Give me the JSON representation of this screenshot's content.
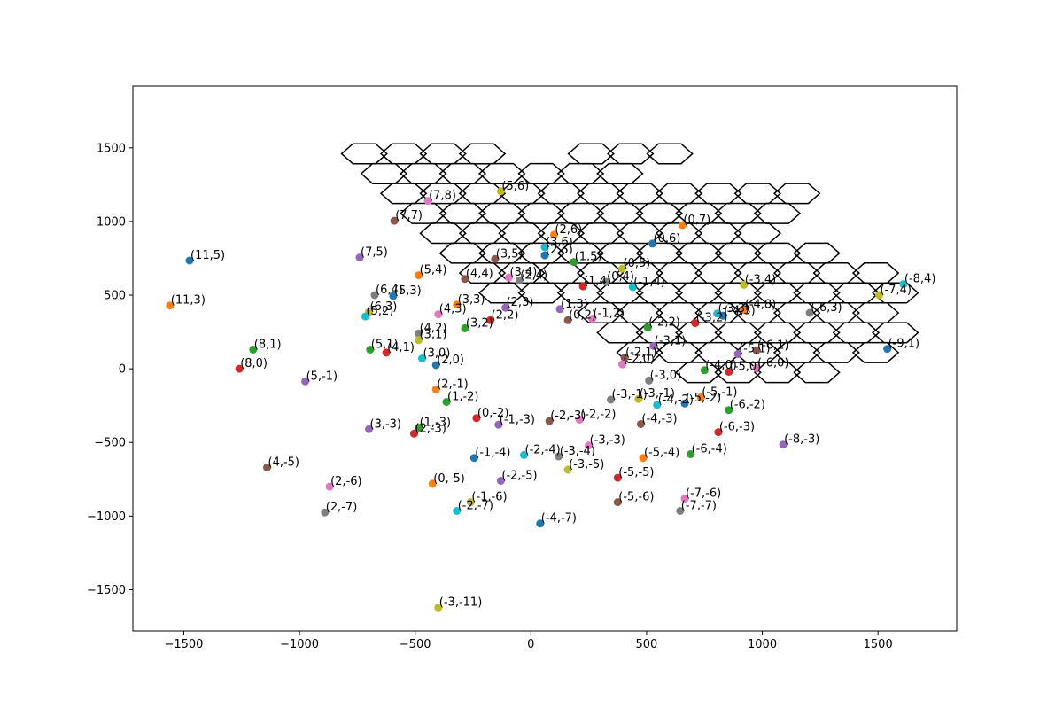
{
  "chart_data": {
    "type": "scatter",
    "title": "",
    "xlabel": "",
    "ylabel": "",
    "xlim": [
      -1720,
      1840
    ],
    "ylim": [
      -1780,
      1920
    ],
    "xticks": [
      -1500,
      -1000,
      -500,
      0,
      500,
      1000,
      1500
    ],
    "yticks": [
      -1500,
      -1000,
      -500,
      0,
      500,
      1000,
      1500
    ],
    "grid": false,
    "legend": "none",
    "colors": [
      "#1f77b4",
      "#ff7f0e",
      "#2ca02c",
      "#d62728",
      "#9467bd",
      "#8c564b",
      "#e377c2",
      "#7f7f7f",
      "#bcbd22",
      "#17becf"
    ],
    "points": [
      {
        "label": "(11,5)",
        "x": -1475,
        "y": 735
      },
      {
        "label": "(11,3)",
        "x": -1560,
        "y": 430
      },
      {
        "label": "(8,1)",
        "x": -1200,
        "y": 130
      },
      {
        "label": "(8,0)",
        "x": -1260,
        "y": 0
      },
      {
        "label": "(7,5)",
        "x": -740,
        "y": 755
      },
      {
        "label": "(7,7)",
        "x": -590,
        "y": 1005
      },
      {
        "label": "(7,8)",
        "x": -445,
        "y": 1140
      },
      {
        "label": "(6,4)",
        "x": -675,
        "y": 500
      },
      {
        "label": "(6,3)",
        "x": -700,
        "y": 385
      },
      {
        "label": "(5,2)",
        "x": -715,
        "y": 355
      },
      {
        "label": "(5,3)",
        "x": -595,
        "y": 495
      },
      {
        "label": "(5,4)",
        "x": -485,
        "y": 635
      },
      {
        "label": "(5,1)",
        "x": -695,
        "y": 130
      },
      {
        "label": "(4,1)",
        "x": -625,
        "y": 110
      },
      {
        "label": "(5,-1)",
        "x": -975,
        "y": -85
      },
      {
        "label": "(4,4)",
        "x": -285,
        "y": 610
      },
      {
        "label": "(4,3)",
        "x": -400,
        "y": 370
      },
      {
        "label": "(4,2)",
        "x": -485,
        "y": 240
      },
      {
        "label": "(3,1)",
        "x": -485,
        "y": 195
      },
      {
        "label": "(3,0)",
        "x": -470,
        "y": 70
      },
      {
        "label": "(2,0)",
        "x": -410,
        "y": 25
      },
      {
        "label": "(3,3)",
        "x": -320,
        "y": 435
      },
      {
        "label": "(3,2)",
        "x": -285,
        "y": 275
      },
      {
        "label": "(2,2)",
        "x": -175,
        "y": 330
      },
      {
        "label": "(2,3)",
        "x": -110,
        "y": 415
      },
      {
        "label": "(3,5)",
        "x": -155,
        "y": 745
      },
      {
        "label": "(3,4)",
        "x": -95,
        "y": 620
      },
      {
        "label": "(2,4)",
        "x": -50,
        "y": 600
      },
      {
        "label": "(5,6)",
        "x": -130,
        "y": 1205
      },
      {
        "label": "(3,6)",
        "x": 60,
        "y": 825
      },
      {
        "label": "(2,5)",
        "x": 60,
        "y": 770
      },
      {
        "label": "(2,6)",
        "x": 100,
        "y": 910
      },
      {
        "label": "(1,5)",
        "x": 185,
        "y": 725
      },
      {
        "label": "(1,4)",
        "x": 225,
        "y": 560
      },
      {
        "label": "(1,3)",
        "x": 125,
        "y": 405
      },
      {
        "label": "(0,2)",
        "x": 160,
        "y": 330
      },
      {
        "label": "(-1,2)",
        "x": 265,
        "y": 340
      },
      {
        "label": "(0,4)",
        "x": 325,
        "y": 590
      },
      {
        "label": "(0,5)",
        "x": 395,
        "y": 680
      },
      {
        "label": "(-1,4)",
        "x": 440,
        "y": 555
      },
      {
        "label": "(0,6)",
        "x": 525,
        "y": 850
      },
      {
        "label": "(0,7)",
        "x": 655,
        "y": 975
      },
      {
        "label": "(-2,2)",
        "x": 505,
        "y": 280
      },
      {
        "label": "(-3,2)",
        "x": 710,
        "y": 310
      },
      {
        "label": "(-3,1)",
        "x": 530,
        "y": 155
      },
      {
        "label": "(-2,1)",
        "x": 405,
        "y": 75
      },
      {
        "label": "(-2,0)",
        "x": 395,
        "y": 30
      },
      {
        "label": "(-3,0)",
        "x": 510,
        "y": -80
      },
      {
        "label": "(-3,4)",
        "x": 920,
        "y": 570
      },
      {
        "label": "(-3,3)",
        "x": 805,
        "y": 375
      },
      {
        "label": "(-4,3)",
        "x": 830,
        "y": 360
      },
      {
        "label": "(-4,8)",
        "x": 920,
        "y": 400
      },
      {
        "label": "(-4,0)",
        "x": 750,
        "y": -10
      },
      {
        "label": "(-5,0)",
        "x": 855,
        "y": -20
      },
      {
        "label": "(-5,1)",
        "x": 895,
        "y": 100
      },
      {
        "label": "(-6,1)",
        "x": 975,
        "y": 125
      },
      {
        "label": "(-6,0)",
        "x": 975,
        "y": 5
      },
      {
        "label": "(-6,3)",
        "x": 1205,
        "y": 380
      },
      {
        "label": "(-7,4)",
        "x": 1505,
        "y": 500
      },
      {
        "label": "(-8,4)",
        "x": 1610,
        "y": 575
      },
      {
        "label": "(-9,1)",
        "x": 1540,
        "y": 135
      },
      {
        "label": "(2,-1)",
        "x": -410,
        "y": -140
      },
      {
        "label": "(1,-2)",
        "x": -365,
        "y": -225
      },
      {
        "label": "(0,-2)",
        "x": -235,
        "y": -335
      },
      {
        "label": "(-1,-3)",
        "x": -140,
        "y": -380
      },
      {
        "label": "(-2,-3)",
        "x": 80,
        "y": -355
      },
      {
        "label": "(-2,-2)",
        "x": 210,
        "y": -345
      },
      {
        "label": "(-3,-1)",
        "x": 345,
        "y": -210
      },
      {
        "label": "(-3,-1)",
        "x": 465,
        "y": -205
      },
      {
        "label": "(-4,-2)",
        "x": 545,
        "y": -245
      },
      {
        "label": "(-5,-2)",
        "x": 665,
        "y": -235
      },
      {
        "label": "(-5,-1)",
        "x": 735,
        "y": -195
      },
      {
        "label": "(-6,-2)",
        "x": 855,
        "y": -280
      },
      {
        "label": "(-6,-3)",
        "x": 810,
        "y": -430
      },
      {
        "label": "(-8,-3)",
        "x": 1090,
        "y": -515
      },
      {
        "label": "(-4,-3)",
        "x": 475,
        "y": -375
      },
      {
        "label": "(-3,-3)",
        "x": 250,
        "y": -520
      },
      {
        "label": "(-3,-4)",
        "x": 120,
        "y": -595
      },
      {
        "label": "(-3,-5)",
        "x": 160,
        "y": -685
      },
      {
        "label": "(-2,-4)",
        "x": -30,
        "y": -585
      },
      {
        "label": "(-1,-4)",
        "x": -245,
        "y": -605
      },
      {
        "label": "(-5,-4)",
        "x": 485,
        "y": -605
      },
      {
        "label": "(-6,-4)",
        "x": 690,
        "y": -580
      },
      {
        "label": "(-5,-5)",
        "x": 375,
        "y": -740
      },
      {
        "label": "(-2,-5)",
        "x": -130,
        "y": -760
      },
      {
        "label": "(-5,-6)",
        "x": 375,
        "y": -905
      },
      {
        "label": "(-7,-6)",
        "x": 665,
        "y": -880
      },
      {
        "label": "(-7,-7)",
        "x": 645,
        "y": -965
      },
      {
        "label": "(-1,-6)",
        "x": -260,
        "y": -905
      },
      {
        "label": "(-2,-7)",
        "x": -320,
        "y": -965
      },
      {
        "label": "(-4,-7)",
        "x": 40,
        "y": -1050
      },
      {
        "label": "(0,-5)",
        "x": -425,
        "y": -780
      },
      {
        "label": "(1,-3)",
        "x": -485,
        "y": -400
      },
      {
        "label": "(2,-3)",
        "x": -505,
        "y": -440
      },
      {
        "label": "(3,-3)",
        "x": -700,
        "y": -410
      },
      {
        "label": "(4,-5)",
        "x": -1140,
        "y": -670
      },
      {
        "label": "(2,-6)",
        "x": -870,
        "y": -800
      },
      {
        "label": "(2,-7)",
        "x": -890,
        "y": -975
      },
      {
        "label": "(-3,-11)",
        "x": -400,
        "y": -1620
      }
    ],
    "hex_grid": {
      "radius": 98,
      "cells": [
        [
          -720,
          1460
        ],
        [
          -550,
          1460
        ],
        [
          -380,
          1460
        ],
        [
          -210,
          1460
        ],
        [
          260,
          1460
        ],
        [
          430,
          1460
        ],
        [
          600,
          1460
        ],
        [
          -635,
          1325
        ],
        [
          -465,
          1325
        ],
        [
          -295,
          1325
        ],
        [
          -125,
          1325
        ],
        [
          45,
          1325
        ],
        [
          215,
          1325
        ],
        [
          385,
          1325
        ],
        [
          -550,
          1190
        ],
        [
          -380,
          1190
        ],
        [
          -210,
          1190
        ],
        [
          -40,
          1190
        ],
        [
          130,
          1190
        ],
        [
          300,
          1190
        ],
        [
          470,
          1190
        ],
        [
          640,
          1190
        ],
        [
          810,
          1190
        ],
        [
          980,
          1190
        ],
        [
          1150,
          1190
        ],
        [
          -465,
          1055
        ],
        [
          -295,
          1055
        ],
        [
          -125,
          1055
        ],
        [
          45,
          1055
        ],
        [
          215,
          1055
        ],
        [
          385,
          1055
        ],
        [
          555,
          1055
        ],
        [
          725,
          1055
        ],
        [
          895,
          1055
        ],
        [
          1065,
          1055
        ],
        [
          -380,
          920
        ],
        [
          -210,
          920
        ],
        [
          -40,
          920
        ],
        [
          130,
          920
        ],
        [
          300,
          920
        ],
        [
          470,
          920
        ],
        [
          640,
          920
        ],
        [
          810,
          920
        ],
        [
          980,
          920
        ],
        [
          -295,
          785
        ],
        [
          -125,
          785
        ],
        [
          45,
          785
        ],
        [
          215,
          785
        ],
        [
          385,
          785
        ],
        [
          555,
          785
        ],
        [
          725,
          785
        ],
        [
          895,
          785
        ],
        [
          1065,
          785
        ],
        [
          1235,
          785
        ],
        [
          -210,
          650
        ],
        [
          -40,
          650
        ],
        [
          130,
          650
        ],
        [
          300,
          650
        ],
        [
          470,
          650
        ],
        [
          640,
          650
        ],
        [
          810,
          650
        ],
        [
          980,
          650
        ],
        [
          1150,
          650
        ],
        [
          1320,
          650
        ],
        [
          1490,
          650
        ],
        [
          -125,
          515
        ],
        [
          45,
          515
        ],
        [
          215,
          515
        ],
        [
          385,
          515
        ],
        [
          555,
          515
        ],
        [
          725,
          515
        ],
        [
          895,
          515
        ],
        [
          1065,
          515
        ],
        [
          1235,
          515
        ],
        [
          1405,
          515
        ],
        [
          1575,
          515
        ],
        [
          300,
          380
        ],
        [
          470,
          380
        ],
        [
          640,
          380
        ],
        [
          810,
          380
        ],
        [
          980,
          380
        ],
        [
          1150,
          380
        ],
        [
          1320,
          380
        ],
        [
          1490,
          380
        ],
        [
          385,
          245
        ],
        [
          555,
          245
        ],
        [
          725,
          245
        ],
        [
          895,
          245
        ],
        [
          1065,
          245
        ],
        [
          1235,
          245
        ],
        [
          1405,
          245
        ],
        [
          1575,
          245
        ],
        [
          470,
          110
        ],
        [
          640,
          110
        ],
        [
          810,
          110
        ],
        [
          980,
          110
        ],
        [
          1150,
          110
        ],
        [
          1320,
          110
        ],
        [
          1490,
          110
        ],
        [
          725,
          -25
        ],
        [
          895,
          -25
        ],
        [
          1065,
          -25
        ],
        [
          1235,
          -25
        ]
      ]
    }
  }
}
